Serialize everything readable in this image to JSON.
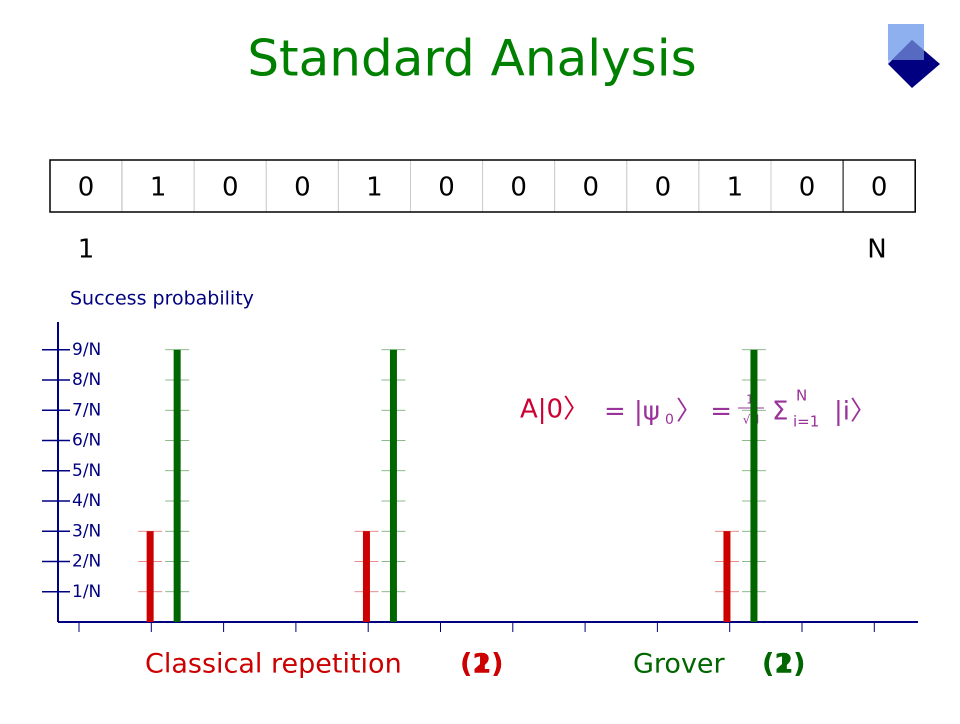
{
  "title": "Standard Analysis",
  "bits": [
    0,
    1,
    0,
    0,
    1,
    0,
    0,
    0,
    0,
    1,
    0,
    0
  ],
  "index_labels": [
    "1",
    "N"
  ],
  "formula": {
    "lhs": "A|0〉",
    "eq": "= |ψ",
    "sub": "0",
    "eq2": "〉 =",
    "num": "1",
    "den": "√N",
    "sum": "Σ",
    "sup": "N",
    "low": "i=1",
    "ket": "|i〉"
  },
  "chart_data": {
    "type": "bar",
    "y_label": "Success probability",
    "categories": [
      null,
      null,
      null,
      null,
      null,
      null,
      null,
      null,
      null,
      null,
      null,
      null
    ],
    "series": [
      {
        "name": "Classical repetition",
        "color": "#cc0000",
        "values": [
          null,
          3,
          null,
          null,
          3,
          null,
          null,
          null,
          null,
          3,
          null,
          null
        ]
      },
      {
        "name": "Grover",
        "color": "#006600",
        "values": [
          null,
          9,
          null,
          null,
          9,
          null,
          null,
          null,
          null,
          9,
          null,
          null
        ]
      }
    ],
    "step_labels": [
      "(1)",
      "(2)"
    ],
    "ylim": [
      0,
      10
    ],
    "yticks": [
      {
        "value": 1,
        "label": "1/N"
      },
      {
        "value": 2,
        "label": "2/N"
      },
      {
        "value": 3,
        "label": "3/N"
      },
      {
        "value": 4,
        "label": "4/N"
      },
      {
        "value": 5,
        "label": "5/N"
      },
      {
        "value": 6,
        "label": "6/N"
      },
      {
        "value": 7,
        "label": "7/N"
      },
      {
        "value": 8,
        "label": "8/N"
      },
      {
        "value": 9,
        "label": "9/N"
      }
    ]
  }
}
